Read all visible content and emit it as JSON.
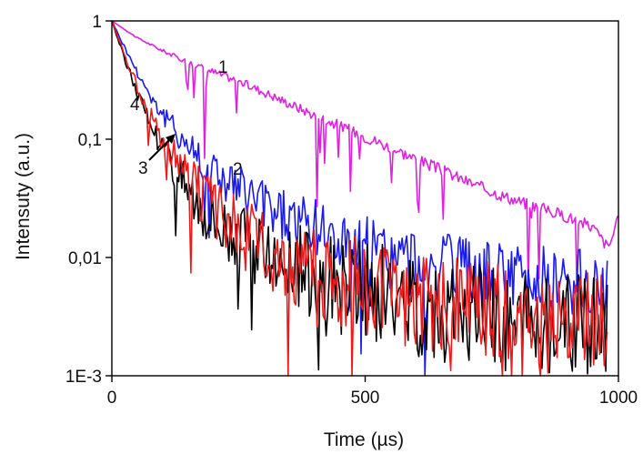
{
  "chart_data": {
    "type": "line",
    "title": "",
    "xlabel": "Time (µs)",
    "ylabel": "Intensuty (a.u.)",
    "xlim": [
      0,
      1000
    ],
    "ylim": [
      0.001,
      1
    ],
    "yscale": "log",
    "grid": false,
    "legend": "none",
    "x_ticks": [
      {
        "value": 0,
        "label": "0"
      },
      {
        "value": 500,
        "label": "500"
      },
      {
        "value": 1000,
        "label": "1000"
      }
    ],
    "y_ticks": [
      {
        "value": 1,
        "label": "1"
      },
      {
        "value": 0.1,
        "label": "0,1"
      },
      {
        "value": 0.01,
        "label": "0,01"
      },
      {
        "value": 0.001,
        "label": "1E-3"
      }
    ],
    "series": [
      {
        "label": "1",
        "color": "#e020e0",
        "x": [
          0,
          50,
          100,
          150,
          200,
          250,
          300,
          350,
          400,
          450,
          500,
          550,
          600,
          650,
          700,
          750,
          800,
          850,
          900,
          950,
          980,
          1000
        ],
        "y": [
          1,
          0.72,
          0.56,
          0.45,
          0.37,
          0.31,
          0.25,
          0.2,
          0.16,
          0.13,
          0.105,
          0.085,
          0.068,
          0.055,
          0.044,
          0.036,
          0.03,
          0.026,
          0.022,
          0.018,
          0.012,
          0.021
        ]
      },
      {
        "label": "2",
        "color": "#1a1aee",
        "x": [
          0,
          25,
          50,
          75,
          100,
          125,
          150,
          175,
          200,
          250,
          300,
          350,
          400,
          450,
          500,
          550,
          600,
          650,
          700,
          750,
          800,
          850,
          900,
          950,
          980
        ],
        "y": [
          1,
          0.6,
          0.37,
          0.24,
          0.16,
          0.12,
          0.09,
          0.07,
          0.055,
          0.038,
          0.028,
          0.022,
          0.017,
          0.014,
          0.012,
          0.01,
          0.009,
          0.008,
          0.0075,
          0.007,
          0.0068,
          0.0065,
          0.006,
          0.0058,
          0.0055
        ]
      },
      {
        "label": "3",
        "color": "#000000",
        "x": [
          0,
          25,
          50,
          75,
          100,
          125,
          150,
          175,
          200,
          250,
          300,
          350,
          400,
          450,
          500,
          550,
          600,
          650,
          700,
          750,
          800,
          850,
          900,
          950,
          980
        ],
        "y": [
          1,
          0.48,
          0.25,
          0.14,
          0.085,
          0.058,
          0.04,
          0.03,
          0.023,
          0.015,
          0.011,
          0.0085,
          0.007,
          0.006,
          0.005,
          0.0045,
          0.004,
          0.0036,
          0.0034,
          0.0032,
          0.003,
          0.0029,
          0.0028,
          0.0027,
          0.0026
        ]
      },
      {
        "label": "4",
        "color": "#ee1a1a",
        "x": [
          0,
          25,
          50,
          75,
          100,
          125,
          150,
          175,
          200,
          250,
          300,
          350,
          400,
          450,
          500,
          550,
          600,
          650,
          700,
          750,
          800,
          850,
          900,
          950,
          980
        ],
        "y": [
          1,
          0.52,
          0.28,
          0.165,
          0.1,
          0.068,
          0.047,
          0.034,
          0.026,
          0.017,
          0.012,
          0.0093,
          0.0076,
          0.0064,
          0.0055,
          0.0049,
          0.0044,
          0.004,
          0.0037,
          0.0035,
          0.0033,
          0.0032,
          0.0031,
          0.003,
          0.0029
        ]
      }
    ]
  }
}
